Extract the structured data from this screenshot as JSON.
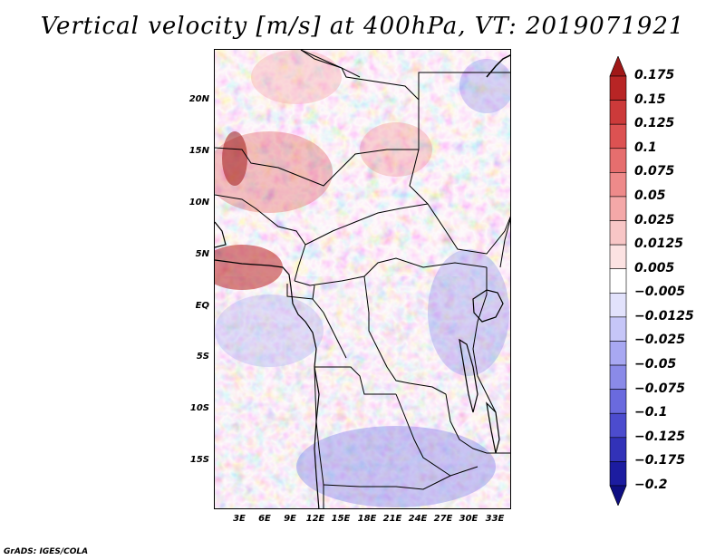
{
  "title": "Vertical velocity [m/s] at 400hPa, VT: 2019071921",
  "credit": "GrADS: IGES/COLA",
  "map": {
    "lat_labels": [
      "20N",
      "15N",
      "10N",
      "5N",
      "EQ",
      "5S",
      "10S",
      "15S"
    ],
    "lon_labels": [
      "3E",
      "6E",
      "9E",
      "12E",
      "15E",
      "18E",
      "21E",
      "24E",
      "27E",
      "30E",
      "33E"
    ],
    "field": "vertical velocity",
    "level": "400hPa",
    "valid_time": "2019071921"
  },
  "colorbar": {
    "labels": [
      "0.175",
      "0.15",
      "0.125",
      "0.1",
      "0.075",
      "0.05",
      "0.025",
      "0.0125",
      "0.005",
      "−0.005",
      "−0.0125",
      "−0.025",
      "−0.05",
      "−0.075",
      "−0.1",
      "−0.125",
      "−0.175",
      "−0.2"
    ],
    "colors": [
      "#a01818",
      "#b82525",
      "#cc3a3a",
      "#dc5252",
      "#e66e6e",
      "#ee8a8a",
      "#f4a8a8",
      "#f8c6c6",
      "#fce2e2",
      "#ffffff",
      "#e2e2fc",
      "#c6c6f8",
      "#a8a8f2",
      "#8a8ae8",
      "#6a6ade",
      "#4c4cce",
      "#3232b8",
      "#1c1ca0",
      "#0e0e82"
    ]
  }
}
